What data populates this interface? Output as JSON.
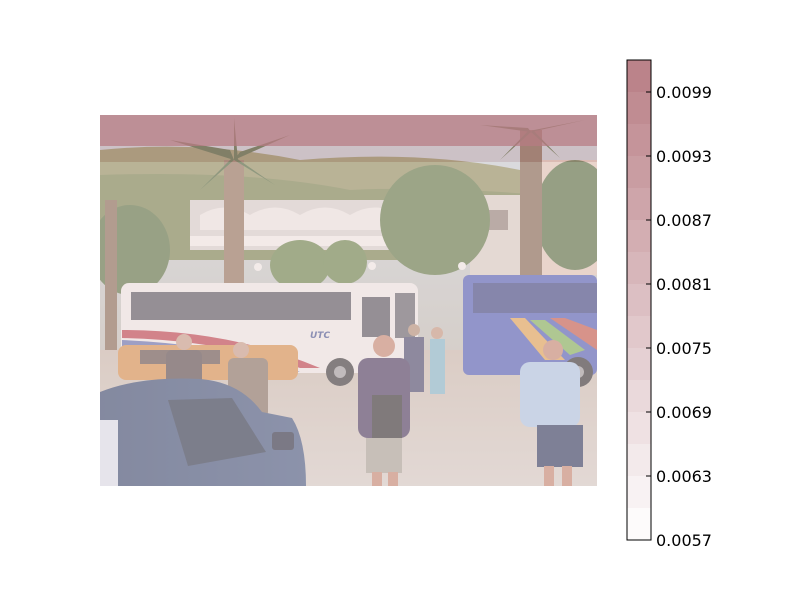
{
  "chart_data": {
    "type": "heatmap",
    "title": "",
    "xlabel": "",
    "ylabel": "",
    "colormap": "light-to-dark red (white to dusty rose), semi-transparent overlay on a photograph",
    "colorbar": {
      "min": 0.0057,
      "max": 0.0102,
      "ticks": [
        0.0057,
        0.0063,
        0.0069,
        0.0075,
        0.0081,
        0.0087,
        0.0093,
        0.0099
      ],
      "tick_labels": [
        "0.0057",
        "0.0063",
        "0.0069",
        "0.0075",
        "0.0081",
        "0.0087",
        "0.0093",
        "0.0099"
      ],
      "color_low": "#ffffff",
      "color_high": "#b97f86",
      "levels": 15
    },
    "heatmap_rows": [
      {
        "band": "top",
        "value": 0.0101
      },
      {
        "band": "below-top",
        "value": 0.0086
      },
      {
        "band": "rest",
        "value": 0.0066
      }
    ],
    "background_photo": "street scene: white and blue tour buses, palm trees, building on a hillside, pedestrians, dark blue car in foreground",
    "bus_logo_text": "UTC"
  }
}
